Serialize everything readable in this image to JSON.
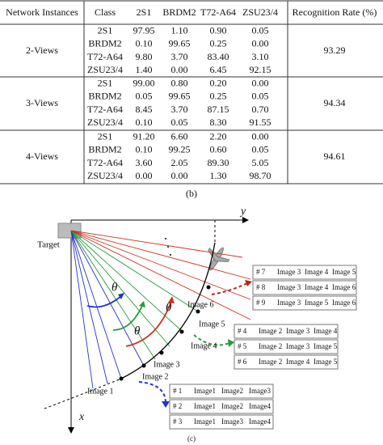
{
  "table": {
    "headers": [
      "Network Instances",
      "Class",
      "2S1",
      "BRDM2",
      "T72-A64",
      "ZSU23/4",
      "Recognition Rate (%)"
    ],
    "groups": [
      {
        "name": "2-Views",
        "rate": "93.29",
        "rows": [
          [
            "2S1",
            "97.95",
            "1.10",
            "0.90",
            "0.05"
          ],
          [
            "BRDM2",
            "0.10",
            "99.65",
            "0.25",
            "0.00"
          ],
          [
            "T72-A64",
            "9.80",
            "3.70",
            "83.40",
            "3.10"
          ],
          [
            "ZSU23/4",
            "1.40",
            "0.00",
            "6.45",
            "92.15"
          ]
        ]
      },
      {
        "name": "3-Views",
        "rate": "94.34",
        "rows": [
          [
            "2S1",
            "99.00",
            "0.80",
            "0.20",
            "0.00"
          ],
          [
            "BRDM2",
            "0.05",
            "99.65",
            "0.25",
            "0.05"
          ],
          [
            "T72-A64",
            "8.45",
            "3.70",
            "87.15",
            "0.70"
          ],
          [
            "ZSU23/4",
            "0.10",
            "0.05",
            "8.30",
            "91.55"
          ]
        ]
      },
      {
        "name": "4-Views",
        "rate": "94.61",
        "rows": [
          [
            "2S1",
            "91.20",
            "6.60",
            "2.20",
            "0.00"
          ],
          [
            "BRDM2",
            "0.10",
            "99.25",
            "0.60",
            "0.05"
          ],
          [
            "T72-A64",
            "3.60",
            "2.05",
            "89.30",
            "5.05"
          ],
          [
            "ZSU23/4",
            "0.00",
            "0.00",
            "1.30",
            "98.70"
          ]
        ]
      }
    ]
  },
  "caption_b": "(b)",
  "diagram": {
    "axis_y": "y",
    "axis_x": "x",
    "target": "Target",
    "thetas": [
      "θ",
      "θ",
      "θ"
    ],
    "images": [
      "Image 1",
      "Image 2",
      "Image 3",
      "Image 4",
      "Image 5",
      "Image 6"
    ],
    "boxes": [
      [
        [
          "# 1",
          "Image1",
          "Image2",
          "Image3"
        ],
        [
          "# 2",
          "Image1",
          "Image2",
          "Image4"
        ],
        [
          "# 3",
          "Image1",
          "Image3",
          "Image4"
        ]
      ],
      [
        [
          "# 4",
          "Image 2",
          "Image 3",
          "Image 4"
        ],
        [
          "# 5",
          "Image 2",
          "Image 3",
          "Image 5"
        ],
        [
          "# 6",
          "Image 2",
          "Image 4",
          "Image 5"
        ]
      ],
      [
        [
          "# 7",
          "Image 3",
          "Image 4",
          "Image 5"
        ],
        [
          "# 8",
          "Image 3",
          "Image 4",
          "Image 6"
        ],
        [
          "# 9",
          "Image 3",
          "Image 5",
          "Image 6"
        ]
      ]
    ]
  },
  "caption_c": "(c)"
}
